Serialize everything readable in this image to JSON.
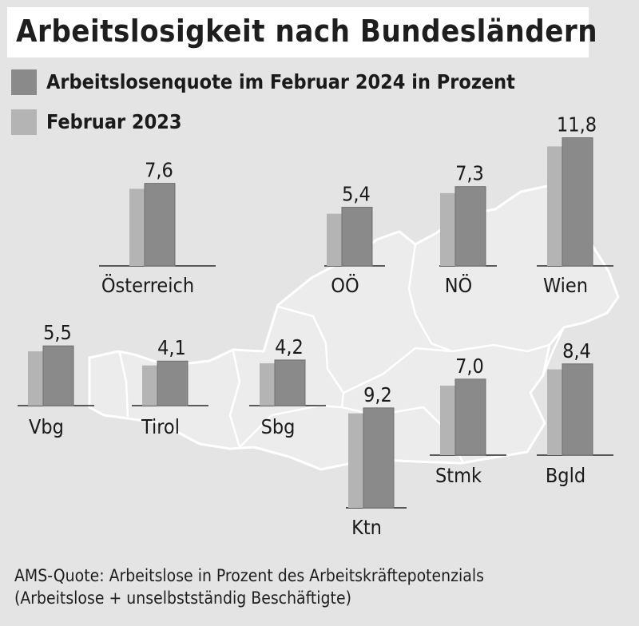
{
  "title": "Arbeitslosigkeit nach Bundesländern",
  "legend": [
    {
      "label": "Arbeitslosenquote im Februar 2024 in Prozent",
      "color": "#8a8a8a"
    },
    {
      "label": "Februar 2023",
      "color": "#b4b4b4"
    }
  ],
  "chart_data": {
    "type": "bar",
    "unit": "Prozent",
    "categories": [
      "Österreich",
      "OÖ",
      "NÖ",
      "Wien",
      "Vbg",
      "Tirol",
      "Sbg",
      "Ktn",
      "Stmk",
      "Bgld"
    ],
    "series": [
      {
        "name": "Arbeitslosenquote im Februar 2024 in Prozent",
        "values": [
          7.6,
          5.4,
          7.3,
          11.8,
          5.5,
          4.1,
          4.2,
          9.2,
          7.0,
          8.4
        ],
        "color": "#8a8a8a"
      },
      {
        "name": "Februar 2023",
        "values": [
          7.1,
          4.8,
          6.7,
          11.0,
          5.0,
          3.7,
          3.9,
          8.7,
          6.4,
          7.9
        ],
        "color": "#b4b4b4"
      }
    ],
    "value_labels": [
      "7,6",
      "5,4",
      "7,3",
      "11,8",
      "5,5",
      "4,1",
      "4,2",
      "9,2",
      "7,0",
      "8,4"
    ]
  },
  "footnote": {
    "line1": "AMS-Quote: Arbeitslose in Prozent des Arbeitskräftepotenzials",
    "line2": "(Arbeitslose + unselbstständig Beschäftigte)"
  },
  "colors": {
    "background": "#e4e4e4",
    "map_fill": "#ececec",
    "map_border": "#ffffff"
  }
}
